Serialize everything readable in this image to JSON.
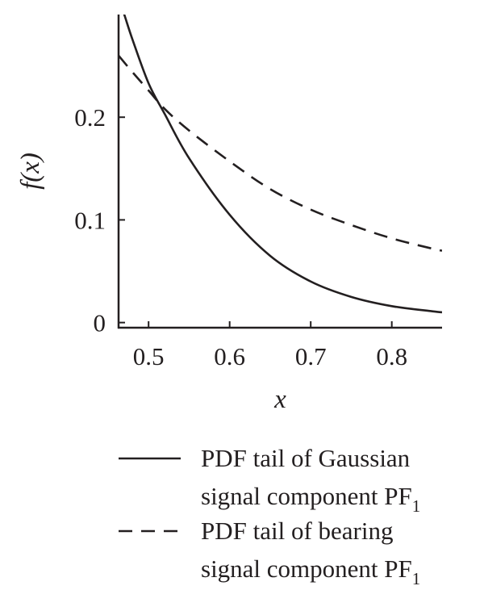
{
  "chart_data": {
    "type": "line",
    "xlabel": "x",
    "ylabel": "f(x)",
    "xlim": [
      0.463,
      0.862
    ],
    "ylim": [
      -0.005,
      0.3
    ],
    "x_ticks": [
      0.5,
      0.6,
      0.7,
      0.8
    ],
    "x_tick_labels": [
      "0.5",
      "0.6",
      "0.7",
      "0.8"
    ],
    "y_ticks": [
      0,
      0.1,
      0.2
    ],
    "y_tick_labels": [
      "0",
      "0.1",
      "0.2"
    ],
    "grid": false,
    "legend_position": "bottom",
    "series": [
      {
        "name": "PDF tail of Gaussian signal component PF1",
        "legend_lines": [
          "PDF tail of Gaussian",
          "signal component PF",
          "1"
        ],
        "line_style": "solid",
        "color": "#231f20",
        "x": [
          0.463,
          0.47,
          0.48,
          0.5,
          0.52,
          0.55,
          0.6,
          0.65,
          0.7,
          0.75,
          0.8,
          0.85,
          0.862
        ],
        "y": [
          0.315,
          0.3,
          0.276,
          0.233,
          0.203,
          0.16,
          0.105,
          0.065,
          0.04,
          0.025,
          0.016,
          0.011,
          0.01
        ]
      },
      {
        "name": "PDF tail of bearing signal component PF1",
        "legend_lines": [
          "PDF tail of bearing",
          "signal component PF",
          "1"
        ],
        "line_style": "dashed",
        "color": "#231f20",
        "x": [
          0.463,
          0.48,
          0.5,
          0.52,
          0.55,
          0.6,
          0.65,
          0.7,
          0.75,
          0.8,
          0.85,
          0.862
        ],
        "y": [
          0.26,
          0.244,
          0.226,
          0.208,
          0.187,
          0.157,
          0.13,
          0.11,
          0.095,
          0.082,
          0.072,
          0.07
        ]
      }
    ]
  }
}
